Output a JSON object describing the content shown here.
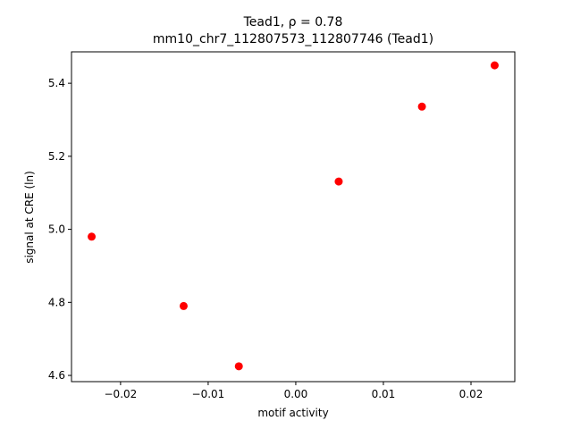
{
  "chart_data": {
    "type": "scatter",
    "title": "Tead1, ρ = 0.78",
    "subtitle": "mm10_chr7_112807573_112807746 (Tead1)",
    "x_label": "motif activity",
    "y_label": "signal at CRE (ln)",
    "color": "#ff0000",
    "x": [
      -0.0233,
      -0.0128,
      -0.0065,
      0.0049,
      0.0144,
      0.0227
    ],
    "values": [
      4.98,
      4.79,
      4.625,
      5.131,
      5.336,
      5.449
    ],
    "xlim": [
      -0.0256,
      0.025
    ],
    "ylim": [
      4.583,
      5.486
    ],
    "xticks": [
      {
        "value": -0.02,
        "label": "−0.02"
      },
      {
        "value": -0.01,
        "label": "−0.01"
      },
      {
        "value": 0,
        "label": "0.00"
      },
      0.01,
      0.02
    ],
    "yticks": [
      4.6,
      4.8,
      {
        "value": 5.0,
        "label": "5.0"
      },
      5.2,
      5.4
    ]
  }
}
